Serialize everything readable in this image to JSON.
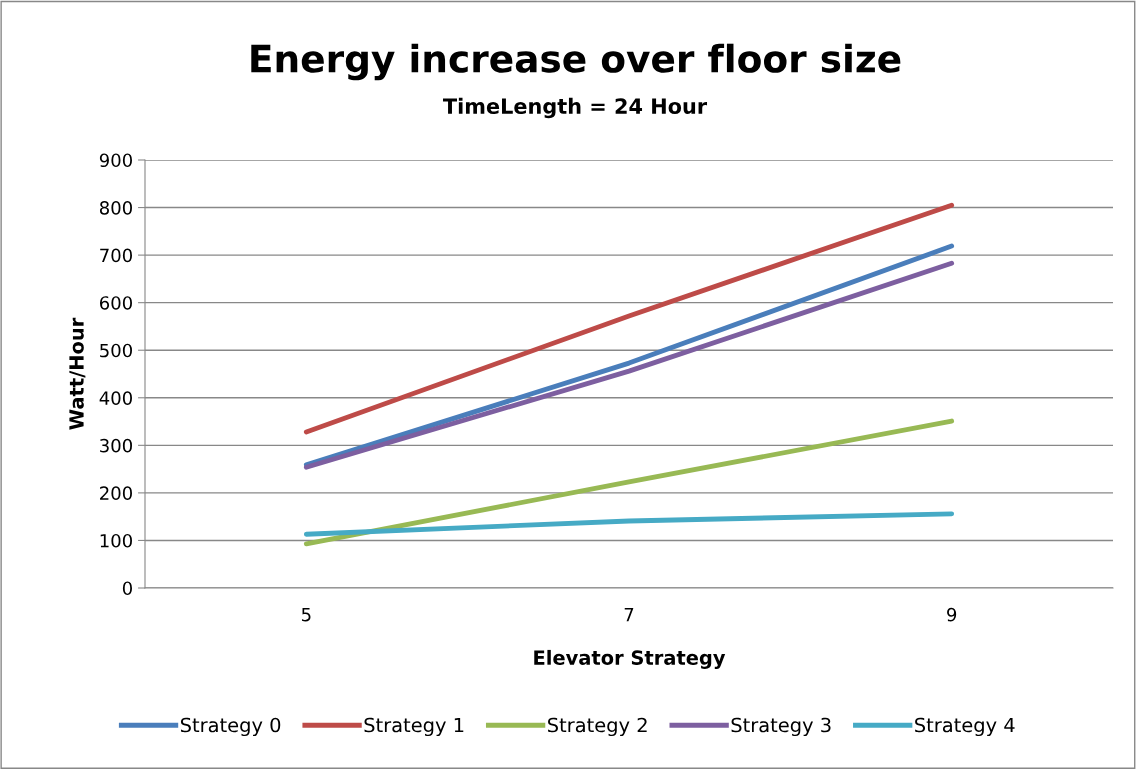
{
  "chart_data": {
    "type": "line",
    "title": "Energy increase over floor size",
    "subtitle": "TimeLength = 24 Hour",
    "xlabel": "Elevator Strategy",
    "ylabel": "Watt/Hour",
    "categories": [
      "5",
      "7",
      "9"
    ],
    "series": [
      {
        "name": "Strategy 0",
        "color": "#4a7ebb",
        "values": [
          259,
          473,
          719
        ]
      },
      {
        "name": "Strategy 1",
        "color": "#be4b48",
        "values": [
          328,
          572,
          805
        ]
      },
      {
        "name": "Strategy 2",
        "color": "#98b954",
        "values": [
          93,
          223,
          351
        ]
      },
      {
        "name": "Strategy 3",
        "color": "#7d5fa0",
        "values": [
          254,
          456,
          683
        ]
      },
      {
        "name": "Strategy 4",
        "color": "#46aac5",
        "values": [
          113,
          141,
          156
        ]
      }
    ],
    "ylim": [
      0,
      900
    ],
    "yticks": [
      0,
      100,
      200,
      300,
      400,
      500,
      600,
      700,
      800,
      900
    ],
    "grid": "y",
    "legend": "bottom",
    "marker": "none",
    "line_style": "solid"
  }
}
